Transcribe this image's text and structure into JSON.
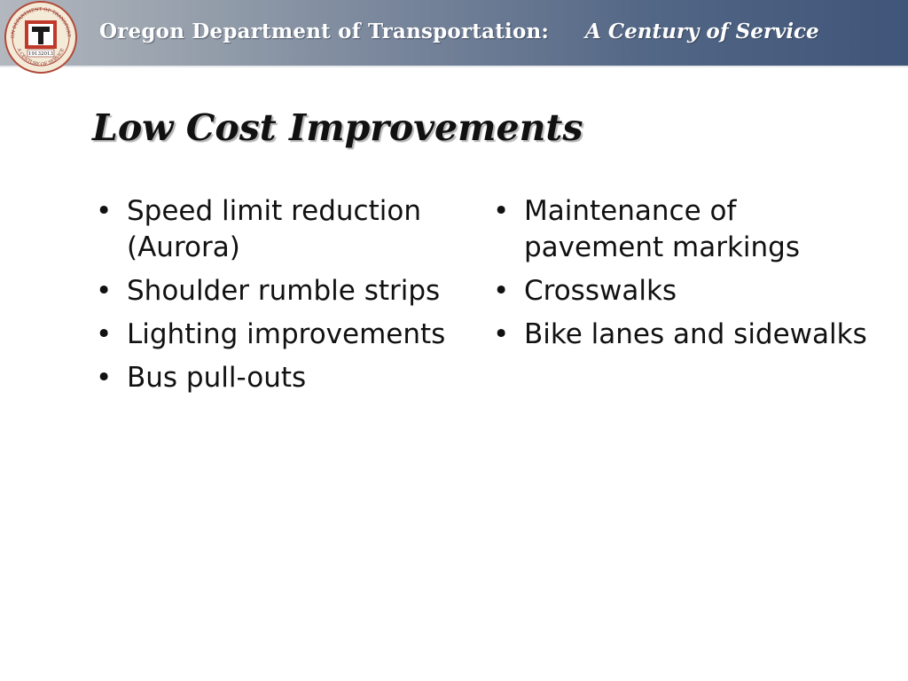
{
  "header": {
    "title": "Oregon Department of Transportation:",
    "subtitle": "A Century of Service",
    "seal": {
      "icon": "odot-centennial-seal",
      "text_top": "OREGON DEPARTMENT OF TRANSPORTATION",
      "text_bottom": "A CENTURY OF SERVICE",
      "year_start": "1913",
      "year_end": "2013"
    }
  },
  "slide": {
    "title": "Low Cost Improvements",
    "bullet_symbol": "•",
    "left_column": [
      "Speed limit reduction (Aurora)",
      "Shoulder rumble strips",
      "Lighting improvements",
      "Bus pull-outs"
    ],
    "right_column": [
      "Maintenance of pavement markings",
      "Crosswalks",
      "Bike lanes and sidewalks"
    ]
  },
  "colors": {
    "banner_left": "#b3b8bf",
    "banner_right": "#3f5579",
    "seal_red": "#c0392b",
    "text": "#111111"
  }
}
